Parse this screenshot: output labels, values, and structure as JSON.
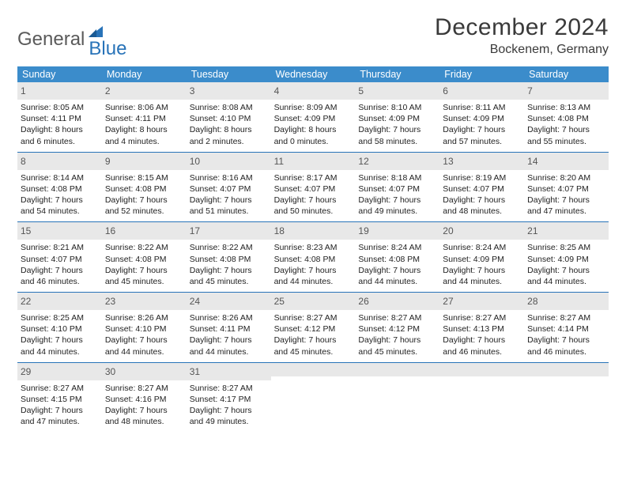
{
  "brand": {
    "part1": "General",
    "part2": "Blue"
  },
  "title": "December 2024",
  "location": "Bockenem, Germany",
  "colors": {
    "header_bg": "#3b8ccb",
    "header_text": "#ffffff",
    "row_divider": "#2873b8",
    "daynum_bg": "#e8e8e8",
    "logo_gray": "#5a5a5a",
    "logo_blue": "#2873b8"
  },
  "weekdays": [
    "Sunday",
    "Monday",
    "Tuesday",
    "Wednesday",
    "Thursday",
    "Friday",
    "Saturday"
  ],
  "weeks": [
    [
      {
        "n": "1",
        "sr": "Sunrise: 8:05 AM",
        "ss": "Sunset: 4:11 PM",
        "d1": "Daylight: 8 hours",
        "d2": "and 6 minutes."
      },
      {
        "n": "2",
        "sr": "Sunrise: 8:06 AM",
        "ss": "Sunset: 4:11 PM",
        "d1": "Daylight: 8 hours",
        "d2": "and 4 minutes."
      },
      {
        "n": "3",
        "sr": "Sunrise: 8:08 AM",
        "ss": "Sunset: 4:10 PM",
        "d1": "Daylight: 8 hours",
        "d2": "and 2 minutes."
      },
      {
        "n": "4",
        "sr": "Sunrise: 8:09 AM",
        "ss": "Sunset: 4:09 PM",
        "d1": "Daylight: 8 hours",
        "d2": "and 0 minutes."
      },
      {
        "n": "5",
        "sr": "Sunrise: 8:10 AM",
        "ss": "Sunset: 4:09 PM",
        "d1": "Daylight: 7 hours",
        "d2": "and 58 minutes."
      },
      {
        "n": "6",
        "sr": "Sunrise: 8:11 AM",
        "ss": "Sunset: 4:09 PM",
        "d1": "Daylight: 7 hours",
        "d2": "and 57 minutes."
      },
      {
        "n": "7",
        "sr": "Sunrise: 8:13 AM",
        "ss": "Sunset: 4:08 PM",
        "d1": "Daylight: 7 hours",
        "d2": "and 55 minutes."
      }
    ],
    [
      {
        "n": "8",
        "sr": "Sunrise: 8:14 AM",
        "ss": "Sunset: 4:08 PM",
        "d1": "Daylight: 7 hours",
        "d2": "and 54 minutes."
      },
      {
        "n": "9",
        "sr": "Sunrise: 8:15 AM",
        "ss": "Sunset: 4:08 PM",
        "d1": "Daylight: 7 hours",
        "d2": "and 52 minutes."
      },
      {
        "n": "10",
        "sr": "Sunrise: 8:16 AM",
        "ss": "Sunset: 4:07 PM",
        "d1": "Daylight: 7 hours",
        "d2": "and 51 minutes."
      },
      {
        "n": "11",
        "sr": "Sunrise: 8:17 AM",
        "ss": "Sunset: 4:07 PM",
        "d1": "Daylight: 7 hours",
        "d2": "and 50 minutes."
      },
      {
        "n": "12",
        "sr": "Sunrise: 8:18 AM",
        "ss": "Sunset: 4:07 PM",
        "d1": "Daylight: 7 hours",
        "d2": "and 49 minutes."
      },
      {
        "n": "13",
        "sr": "Sunrise: 8:19 AM",
        "ss": "Sunset: 4:07 PM",
        "d1": "Daylight: 7 hours",
        "d2": "and 48 minutes."
      },
      {
        "n": "14",
        "sr": "Sunrise: 8:20 AM",
        "ss": "Sunset: 4:07 PM",
        "d1": "Daylight: 7 hours",
        "d2": "and 47 minutes."
      }
    ],
    [
      {
        "n": "15",
        "sr": "Sunrise: 8:21 AM",
        "ss": "Sunset: 4:07 PM",
        "d1": "Daylight: 7 hours",
        "d2": "and 46 minutes."
      },
      {
        "n": "16",
        "sr": "Sunrise: 8:22 AM",
        "ss": "Sunset: 4:08 PM",
        "d1": "Daylight: 7 hours",
        "d2": "and 45 minutes."
      },
      {
        "n": "17",
        "sr": "Sunrise: 8:22 AM",
        "ss": "Sunset: 4:08 PM",
        "d1": "Daylight: 7 hours",
        "d2": "and 45 minutes."
      },
      {
        "n": "18",
        "sr": "Sunrise: 8:23 AM",
        "ss": "Sunset: 4:08 PM",
        "d1": "Daylight: 7 hours",
        "d2": "and 44 minutes."
      },
      {
        "n": "19",
        "sr": "Sunrise: 8:24 AM",
        "ss": "Sunset: 4:08 PM",
        "d1": "Daylight: 7 hours",
        "d2": "and 44 minutes."
      },
      {
        "n": "20",
        "sr": "Sunrise: 8:24 AM",
        "ss": "Sunset: 4:09 PM",
        "d1": "Daylight: 7 hours",
        "d2": "and 44 minutes."
      },
      {
        "n": "21",
        "sr": "Sunrise: 8:25 AM",
        "ss": "Sunset: 4:09 PM",
        "d1": "Daylight: 7 hours",
        "d2": "and 44 minutes."
      }
    ],
    [
      {
        "n": "22",
        "sr": "Sunrise: 8:25 AM",
        "ss": "Sunset: 4:10 PM",
        "d1": "Daylight: 7 hours",
        "d2": "and 44 minutes."
      },
      {
        "n": "23",
        "sr": "Sunrise: 8:26 AM",
        "ss": "Sunset: 4:10 PM",
        "d1": "Daylight: 7 hours",
        "d2": "and 44 minutes."
      },
      {
        "n": "24",
        "sr": "Sunrise: 8:26 AM",
        "ss": "Sunset: 4:11 PM",
        "d1": "Daylight: 7 hours",
        "d2": "and 44 minutes."
      },
      {
        "n": "25",
        "sr": "Sunrise: 8:27 AM",
        "ss": "Sunset: 4:12 PM",
        "d1": "Daylight: 7 hours",
        "d2": "and 45 minutes."
      },
      {
        "n": "26",
        "sr": "Sunrise: 8:27 AM",
        "ss": "Sunset: 4:12 PM",
        "d1": "Daylight: 7 hours",
        "d2": "and 45 minutes."
      },
      {
        "n": "27",
        "sr": "Sunrise: 8:27 AM",
        "ss": "Sunset: 4:13 PM",
        "d1": "Daylight: 7 hours",
        "d2": "and 46 minutes."
      },
      {
        "n": "28",
        "sr": "Sunrise: 8:27 AM",
        "ss": "Sunset: 4:14 PM",
        "d1": "Daylight: 7 hours",
        "d2": "and 46 minutes."
      }
    ],
    [
      {
        "n": "29",
        "sr": "Sunrise: 8:27 AM",
        "ss": "Sunset: 4:15 PM",
        "d1": "Daylight: 7 hours",
        "d2": "and 47 minutes."
      },
      {
        "n": "30",
        "sr": "Sunrise: 8:27 AM",
        "ss": "Sunset: 4:16 PM",
        "d1": "Daylight: 7 hours",
        "d2": "and 48 minutes."
      },
      {
        "n": "31",
        "sr": "Sunrise: 8:27 AM",
        "ss": "Sunset: 4:17 PM",
        "d1": "Daylight: 7 hours",
        "d2": "and 49 minutes."
      },
      null,
      null,
      null,
      null
    ]
  ]
}
